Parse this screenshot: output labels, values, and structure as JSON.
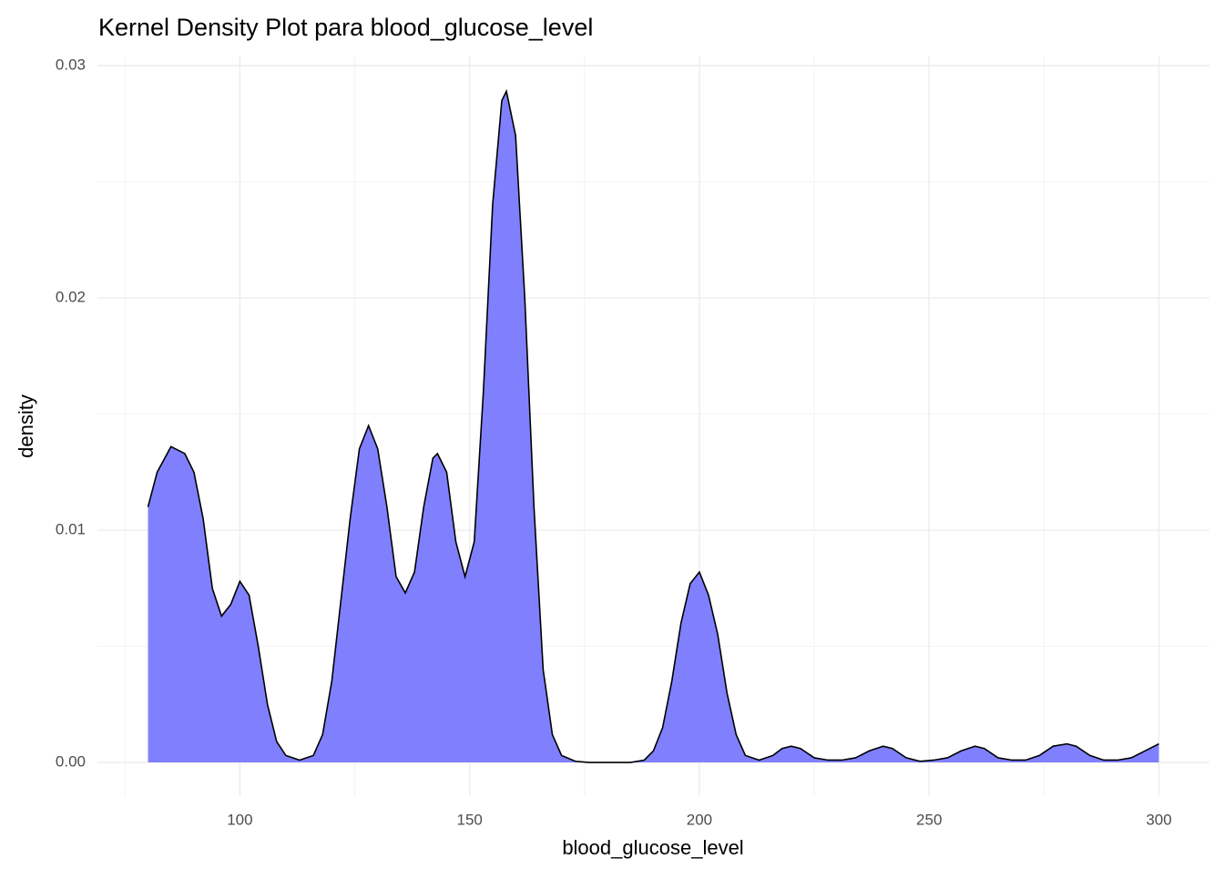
{
  "chart_data": {
    "type": "area",
    "title": "Kernel Density Plot para blood_glucose_level",
    "x_label": "blood_glucose_level",
    "y_label": "density",
    "fill_color": "#8080ff",
    "line_color": "#000000",
    "grid": true,
    "xlim": [
      69,
      311
    ],
    "ylim": [
      -0.00145,
      0.0304
    ],
    "xticks": [
      100,
      150,
      200,
      250,
      300
    ],
    "yticks": [
      {
        "value": 0,
        "label": "0.00"
      },
      0.01,
      0.02,
      0.03
    ],
    "xminor": [
      75,
      125,
      175,
      225,
      275
    ],
    "yminor": [
      0.005,
      0.015,
      0.025
    ],
    "x": [
      80,
      82,
      85,
      88,
      90,
      92,
      94,
      96,
      98,
      100,
      102,
      104,
      106,
      108,
      110,
      113,
      116,
      118,
      120,
      122,
      124,
      126,
      128,
      130,
      132,
      134,
      136,
      138,
      140,
      142,
      143,
      145,
      147,
      149,
      151,
      153,
      155,
      157,
      158,
      160,
      162,
      164,
      166,
      168,
      170,
      173,
      176,
      180,
      185,
      188,
      190,
      192,
      194,
      196,
      198,
      200,
      202,
      204,
      206,
      208,
      210,
      213,
      216,
      218,
      220,
      222,
      225,
      228,
      231,
      234,
      237,
      240,
      242,
      245,
      248,
      251,
      254,
      257,
      260,
      262,
      265,
      268,
      271,
      274,
      277,
      280,
      282,
      285,
      288,
      291,
      294,
      297,
      300
    ],
    "values": [
      0.011,
      0.0125,
      0.0136,
      0.0133,
      0.0125,
      0.0105,
      0.0075,
      0.0063,
      0.0068,
      0.0078,
      0.0072,
      0.005,
      0.0025,
      0.0009,
      0.0003,
      0.0001,
      0.0003,
      0.0012,
      0.0035,
      0.007,
      0.0105,
      0.0135,
      0.0145,
      0.0135,
      0.011,
      0.008,
      0.0073,
      0.0082,
      0.011,
      0.0131,
      0.0133,
      0.0125,
      0.0095,
      0.008,
      0.0095,
      0.016,
      0.024,
      0.0285,
      0.0289,
      0.027,
      0.02,
      0.011,
      0.004,
      0.0012,
      0.0003,
      5e-05,
      0,
      0,
      0,
      0.0001,
      0.0005,
      0.0015,
      0.0035,
      0.006,
      0.0077,
      0.0082,
      0.0072,
      0.0055,
      0.003,
      0.0012,
      0.0003,
      0.0001,
      0.0003,
      0.0006,
      0.0007,
      0.0006,
      0.0002,
      0.0001,
      0.0001,
      0.0002,
      0.0005,
      0.0007,
      0.0006,
      0.0002,
      5e-05,
      0.0001,
      0.0002,
      0.0005,
      0.0007,
      0.0006,
      0.0002,
      0.0001,
      0.0001,
      0.0003,
      0.0007,
      0.0008,
      0.0007,
      0.0003,
      0.0001,
      0.0001,
      0.0002,
      0.0005,
      0.0008
    ]
  }
}
